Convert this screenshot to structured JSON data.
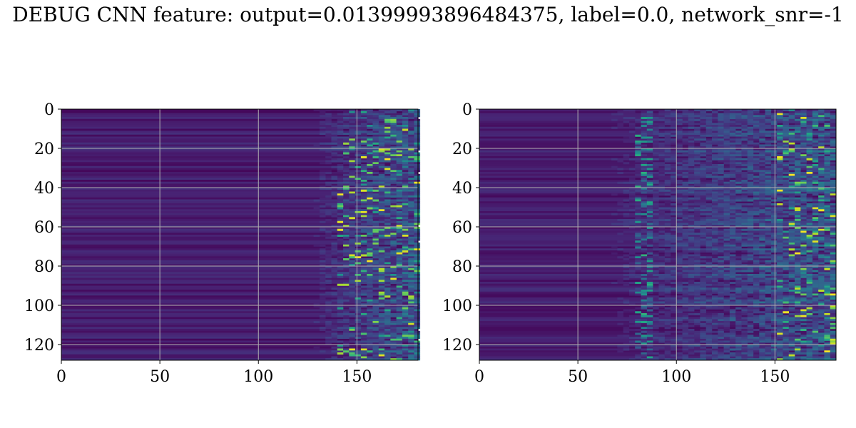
{
  "figure": {
    "title": "DEBUG CNN feature: output=0.013999938964843 75, label=0.0, network_snr=-1"
  },
  "colors": {
    "background_low": "#440154",
    "mid": "#3b528b",
    "high_teal": "#21918c",
    "high_green": "#5ec962",
    "peak": "#fde725",
    "grid": "#b0b0b0"
  },
  "chart_data": [
    {
      "type": "heatmap",
      "panel": "left",
      "colormap": "viridis",
      "grid": true,
      "xlim": [
        0,
        181
      ],
      "ylim": [
        128,
        0
      ],
      "xticks": [
        0,
        50,
        100,
        150
      ],
      "yticks": [
        0,
        20,
        40,
        60,
        80,
        100,
        120
      ],
      "xlabel": "",
      "ylabel": "",
      "n_rows": 128,
      "n_cols": 181,
      "description_features": {
        "activity_onset_col": 120,
        "bright_blob_cols": [
          140,
          181
        ]
      }
    },
    {
      "type": "heatmap",
      "panel": "right",
      "colormap": "viridis",
      "grid": true,
      "xlim": [
        0,
        181
      ],
      "ylim": [
        128,
        0
      ],
      "xticks": [
        0,
        50,
        100,
        150
      ],
      "yticks": [
        0,
        20,
        40,
        60,
        80,
        100,
        120
      ],
      "xlabel": "",
      "ylabel": "",
      "n_rows": 128,
      "n_cols": 181,
      "description_features": {
        "activity_onset_col": 50,
        "secondary_band_col": 82,
        "bright_blob_cols": [
          150,
          181
        ]
      }
    }
  ]
}
